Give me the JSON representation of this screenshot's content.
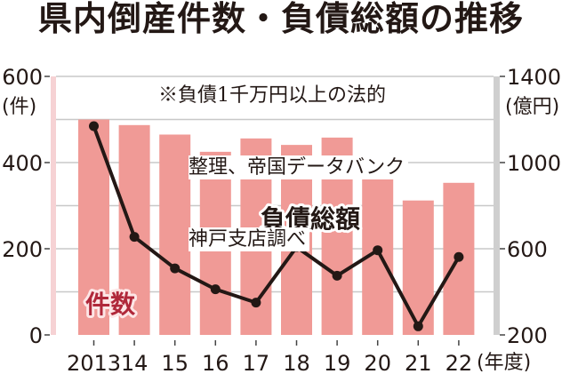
{
  "title": "県内倒産件数・負債総額の推移",
  "note": {
    "lines": [
      "※負債1千万円以上の法的",
      "整理、帝国データバンク",
      "神戸支店調べ"
    ]
  },
  "colors": {
    "bar": "#f09a96",
    "line": "#231815",
    "left_axis_band": "#f6d2d4",
    "right_axis_band": "#cfcfcf",
    "grid": "#c8c8c8",
    "count_label": "#b0283a"
  },
  "chart_data": {
    "type": "bar+line",
    "title": "県内倒産件数・負債総額の推移",
    "subtitle": "※負債1千万円以上の法的整理、帝国データバンク神戸支店調べ",
    "categories": [
      "2013",
      "14",
      "15",
      "16",
      "17",
      "18",
      "19",
      "20",
      "21",
      "22"
    ],
    "xlabel": "(年度)",
    "series": [
      {
        "name": "件数",
        "type": "bar",
        "axis": "left",
        "values": [
          500,
          487,
          465,
          425,
          456,
          441,
          458,
          416,
          312,
          353
        ]
      },
      {
        "name": "負債総額",
        "type": "line",
        "axis": "right",
        "values": [
          1169,
          655,
          509,
          412,
          350,
          608,
          475,
          593,
          240,
          562
        ]
      }
    ],
    "left_axis": {
      "label": "(件)",
      "ticks": [
        "0",
        "200",
        "400",
        "600"
      ],
      "ylim": [
        0,
        600
      ]
    },
    "right_axis": {
      "label": "(億円)",
      "ticks": [
        "200",
        "600",
        "1000",
        "1400"
      ],
      "ylim": [
        200,
        1400
      ]
    },
    "grid": true,
    "legend": "inline labels"
  },
  "labels": {
    "count": "件数",
    "debt": "負債総額",
    "left_unit": "(件)",
    "right_unit": "(億円)",
    "x_unit": "(年度)"
  }
}
